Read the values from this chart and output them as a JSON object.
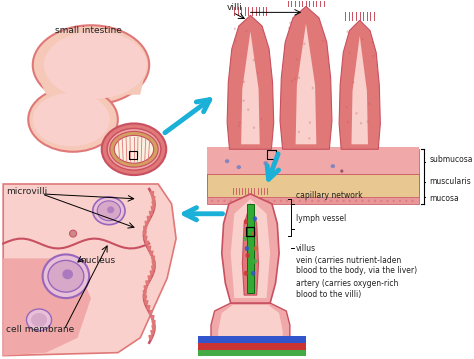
{
  "background_color": "#ffffff",
  "fig_width": 4.74,
  "fig_height": 3.59,
  "dpi": 100,
  "labels": {
    "small_intestine": "small intestine",
    "villi": "villi",
    "submucosa": "submucosa",
    "muscularis": "muscularis",
    "mucosa": "mucosa",
    "microvilli": "microvilli",
    "nucleus": "nucleus",
    "cell_membrane": "cell membrane",
    "capillary_network": "capillary network",
    "lymph_vessel": "lymph vessel",
    "villus": "villus",
    "vein": "vein (carries nutrient-laden\nblood to the body, via the liver)",
    "artery": "artery (carries oxygen-rich\nblood to the villi)"
  },
  "colors": {
    "pink_pale": "#f9d0cc",
    "pink_light": "#f0a8a8",
    "pink_medium": "#e07878",
    "pink_dark": "#c85060",
    "pink_skin": "#f5c8b8",
    "pink_deep": "#d46878",
    "pink_submucosa": "#e89898",
    "tan_mucosa": "#e8c890",
    "blue_arrow": "#1ab0d8",
    "text_dark": "#222222",
    "red_vessel": "#cc3333",
    "blue_vessel": "#3355cc",
    "green_vessel": "#33aa33",
    "purple_nucleus": "#9966bb",
    "orange_layer": "#d4a060",
    "white": "#ffffff",
    "cream": "#faf0e0",
    "dark_red": "#883030"
  },
  "font_size_label": 6.5,
  "font_size_small": 5.5,
  "font_size_tiny": 5.0
}
